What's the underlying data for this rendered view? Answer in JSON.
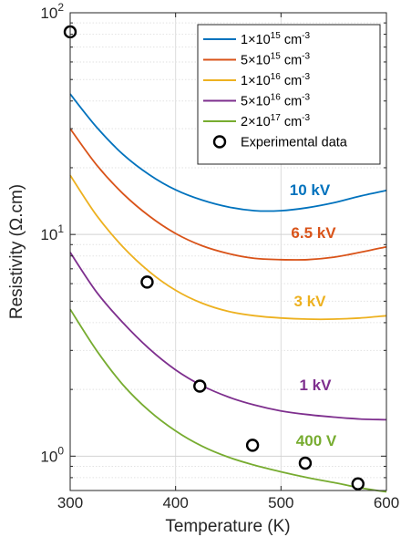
{
  "chart_data": {
    "type": "line",
    "xlabel": "Temperature (K)",
    "ylabel": "Resistivity (Ω.cm)",
    "xlim": [
      300,
      600
    ],
    "ylim": [
      0.7,
      100
    ],
    "y_scale": "log",
    "grid": true,
    "legend_position": "top-right",
    "x_ticks": [
      {
        "value": 300,
        "label": "300"
      },
      {
        "value": 400,
        "label": "400"
      },
      {
        "value": 500,
        "label": "500"
      },
      {
        "value": 600,
        "label": "600"
      }
    ],
    "y_ticks": [
      {
        "value": 1,
        "base": "10",
        "exp": "0"
      },
      {
        "value": 10,
        "base": "10",
        "exp": "1"
      },
      {
        "value": 100,
        "base": "10",
        "exp": "2"
      }
    ],
    "series": [
      {
        "name": "1×10¹⁵ cm⁻³",
        "legend": {
          "mant": "1",
          "exp": "15",
          "unit": "cm",
          "uexp": "-3"
        },
        "color": "#0072bd",
        "annotation": "10 kV",
        "x": [
          300,
          325,
          350,
          375,
          400,
          425,
          450,
          475,
          500,
          525,
          550,
          575,
          600
        ],
        "y": [
          43,
          30.5,
          23,
          18.6,
          15.9,
          14.3,
          13.3,
          12.8,
          12.8,
          13.2,
          13.9,
          14.9,
          15.8
        ]
      },
      {
        "name": "5×10¹⁵ cm⁻³",
        "legend": {
          "mant": "5",
          "exp": "15",
          "unit": "cm",
          "uexp": "-3"
        },
        "color": "#d95319",
        "annotation": "6.5 kV",
        "x": [
          300,
          325,
          350,
          375,
          400,
          425,
          450,
          475,
          500,
          525,
          550,
          575,
          600
        ],
        "y": [
          30,
          20.6,
          15.3,
          12.1,
          10.1,
          8.9,
          8.2,
          7.8,
          7.7,
          7.7,
          7.9,
          8.3,
          8.8
        ]
      },
      {
        "name": "1×10¹⁶ cm⁻³",
        "legend": {
          "mant": "1",
          "exp": "16",
          "unit": "cm",
          "uexp": "-3"
        },
        "color": "#edb120",
        "annotation": "3 kV",
        "x": [
          300,
          325,
          350,
          375,
          400,
          425,
          450,
          475,
          500,
          525,
          550,
          575,
          600
        ],
        "y": [
          18.5,
          12.2,
          8.8,
          6.8,
          5.6,
          4.9,
          4.5,
          4.3,
          4.2,
          4.15,
          4.15,
          4.2,
          4.3
        ]
      },
      {
        "name": "5×10¹⁶ cm⁻³",
        "legend": {
          "mant": "5",
          "exp": "16",
          "unit": "cm",
          "uexp": "-3"
        },
        "color": "#7e2f8e",
        "annotation": "1 kV",
        "x": [
          300,
          325,
          350,
          375,
          400,
          425,
          450,
          475,
          500,
          525,
          550,
          575,
          600
        ],
        "y": [
          8.3,
          5.5,
          4.0,
          3.05,
          2.45,
          2.08,
          1.85,
          1.7,
          1.6,
          1.54,
          1.5,
          1.47,
          1.46
        ]
      },
      {
        "name": "2×10¹⁷ cm⁻³",
        "legend": {
          "mant": "2",
          "exp": "17",
          "unit": "cm",
          "uexp": "-3"
        },
        "color": "#77ac30",
        "annotation": "400 V",
        "x": [
          300,
          325,
          350,
          375,
          400,
          425,
          450,
          475,
          500,
          525,
          550,
          575,
          600
        ],
        "y": [
          4.6,
          3.0,
          2.1,
          1.6,
          1.3,
          1.11,
          0.99,
          0.91,
          0.85,
          0.8,
          0.76,
          0.72,
          0.69
        ]
      }
    ],
    "scatter": {
      "name": "Experimental data",
      "x": [
        300,
        373,
        423,
        473,
        523,
        573
      ],
      "y": [
        82,
        6.1,
        2.07,
        1.12,
        0.93,
        0.75
      ]
    }
  }
}
